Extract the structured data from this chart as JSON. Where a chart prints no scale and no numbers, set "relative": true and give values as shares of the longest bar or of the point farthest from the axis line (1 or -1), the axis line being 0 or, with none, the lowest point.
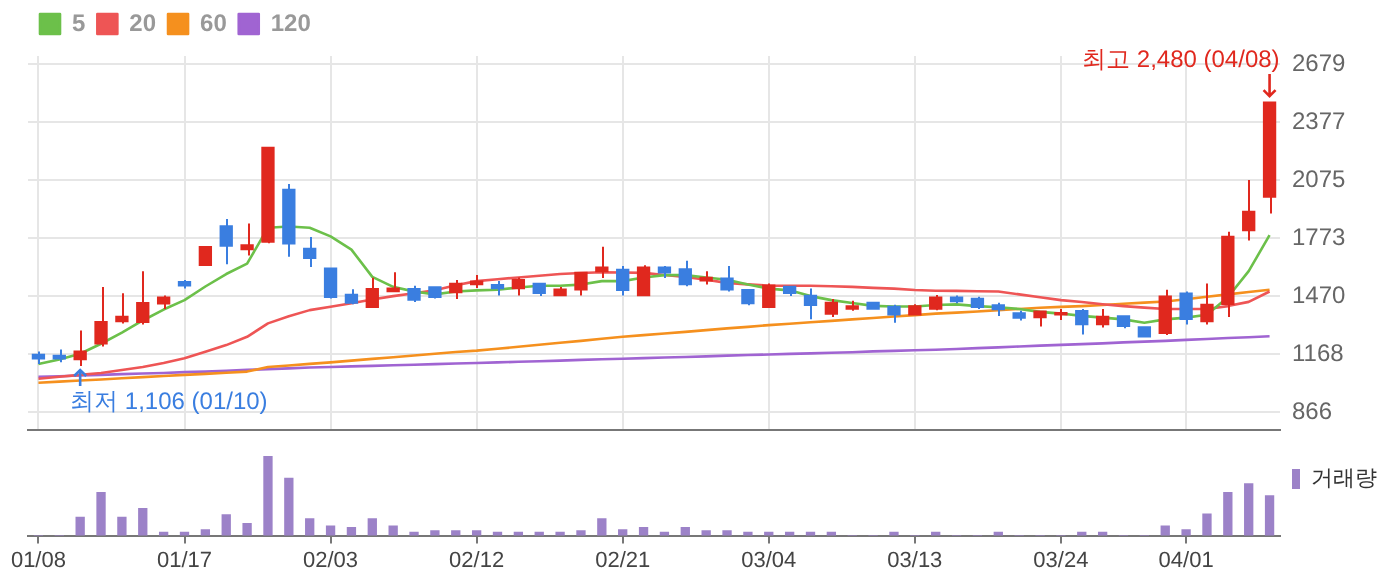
{
  "chart_data": [
    {
      "type": "candlestick",
      "categories": [
        null,
        null,
        null,
        null,
        null,
        null,
        null,
        null,
        null,
        null,
        null,
        null,
        null,
        null,
        null,
        null,
        null,
        null,
        null,
        null,
        null,
        null,
        null,
        null,
        null,
        null,
        null,
        null,
        null,
        null,
        null,
        null,
        null,
        null,
        null,
        null,
        null,
        null,
        null,
        null,
        null,
        null,
        null,
        null,
        null,
        null,
        null,
        null,
        null,
        null,
        null,
        null,
        null,
        null,
        null,
        null,
        null,
        null,
        null,
        null
      ],
      "ohlc": [
        [
          1167,
          1182,
          1116,
          1143
        ],
        [
          1161,
          1192,
          1125,
          1143
        ],
        [
          1140,
          1291,
          1106,
          1183
        ],
        [
          1222,
          1518,
          1207,
          1337
        ],
        [
          1337,
          1485,
          1328,
          1364
        ],
        [
          1334,
          1600,
          1322,
          1436
        ],
        [
          1430,
          1473,
          1403,
          1464
        ],
        [
          1545,
          1554,
          1509,
          1524
        ],
        [
          1630,
          1727,
          1630,
          1727
        ],
        [
          1835,
          1872,
          1636,
          1730
        ],
        [
          1712,
          1848,
          1681,
          1736
        ],
        [
          1751,
          2244,
          1745,
          2244
        ],
        [
          2026,
          2053,
          1675,
          1742
        ],
        [
          1718,
          1778,
          1621,
          1666
        ],
        [
          1615,
          1615,
          1458,
          1464
        ],
        [
          1479,
          1506,
          1427,
          1433
        ],
        [
          1412,
          1566,
          1412,
          1509
        ],
        [
          1494,
          1594,
          1491,
          1512
        ],
        [
          1509,
          1524,
          1439,
          1449
        ],
        [
          1518,
          1518,
          1458,
          1464
        ],
        [
          1488,
          1554,
          1455,
          1536
        ],
        [
          1530,
          1580,
          1512,
          1548
        ],
        [
          1530,
          1548,
          1473,
          1509
        ],
        [
          1509,
          1567,
          1473,
          1555
        ],
        [
          1536,
          1536,
          1470,
          1485
        ],
        [
          1473,
          1518,
          1473,
          1506
        ],
        [
          1503,
          1594,
          1473,
          1594
        ],
        [
          1597,
          1727,
          1564,
          1621
        ],
        [
          1609,
          1627,
          1473,
          1500
        ],
        [
          1473,
          1630,
          1473,
          1621
        ],
        [
          1621,
          1627,
          1564,
          1591
        ],
        [
          1612,
          1654,
          1521,
          1530
        ],
        [
          1549,
          1600,
          1530,
          1567
        ],
        [
          1564,
          1627,
          1494,
          1503
        ],
        [
          1503,
          1503,
          1422,
          1431
        ],
        [
          1412,
          1536,
          1412,
          1527
        ],
        [
          1521,
          1521,
          1470,
          1485
        ],
        [
          1473,
          1509,
          1349,
          1422
        ],
        [
          1376,
          1455,
          1361,
          1437
        ],
        [
          1403,
          1446,
          1394,
          1419
        ],
        [
          1437,
          1437,
          1403,
          1403
        ],
        [
          1416,
          1425,
          1331,
          1373
        ],
        [
          1373,
          1428,
          1373,
          1419
        ],
        [
          1403,
          1476,
          1397,
          1464
        ],
        [
          1464,
          1473,
          1433,
          1442
        ],
        [
          1458,
          1467,
          1403,
          1412
        ],
        [
          1424,
          1436,
          1367,
          1400
        ],
        [
          1382,
          1394,
          1343,
          1355
        ],
        [
          1358,
          1391,
          1312,
          1391
        ],
        [
          1373,
          1403,
          1346,
          1382
        ],
        [
          1394,
          1403,
          1270,
          1322
        ],
        [
          1322,
          1403,
          1306,
          1364
        ],
        [
          1367,
          1367,
          1303,
          1312
        ],
        [
          1309,
          1309,
          1258,
          1258
        ],
        [
          1276,
          1503,
          1267,
          1470
        ],
        [
          1485,
          1494,
          1322,
          1349
        ],
        [
          1337,
          1536,
          1322,
          1427
        ],
        [
          1427,
          1805,
          1361,
          1781
        ],
        [
          1811,
          2074,
          1760,
          1911
        ],
        [
          1985,
          2480,
          1900,
          2480
        ]
      ],
      "colors": [
        "#3a7ee0",
        "#3a7ee0",
        "#e0281e",
        "#e0281e",
        "#e0281e",
        "#e0281e",
        "#e0281e",
        "#3a7ee0",
        "#e0281e",
        "#3a7ee0",
        "#e0281e",
        "#e0281e",
        "#3a7ee0",
        "#3a7ee0",
        "#3a7ee0",
        "#3a7ee0",
        "#e0281e",
        "#e0281e",
        "#3a7ee0",
        "#3a7ee0",
        "#e0281e",
        "#e0281e",
        "#3a7ee0",
        "#e0281e",
        "#3a7ee0",
        "#e0281e",
        "#e0281e",
        "#e0281e",
        "#3a7ee0",
        "#e0281e",
        "#3a7ee0",
        "#3a7ee0",
        "#e0281e",
        "#3a7ee0",
        "#3a7ee0",
        "#e0281e",
        "#3a7ee0",
        "#3a7ee0",
        "#e0281e",
        "#e0281e",
        "#3a7ee0",
        "#3a7ee0",
        "#e0281e",
        "#e0281e",
        "#3a7ee0",
        "#3a7ee0",
        "#3a7ee0",
        "#3a7ee0",
        "#e0281e",
        "#e0281e",
        "#3a7ee0",
        "#e0281e",
        "#3a7ee0",
        "#3a7ee0",
        "#e0281e",
        "#3a7ee0",
        "#e0281e",
        "#e0281e",
        "#e0281e",
        "#e0281e"
      ],
      "series": [
        {
          "name": "5",
          "type": "line",
          "color": "#6cc04a",
          "values": [
            1116,
            1140,
            1170,
            1222,
            1280,
            1343,
            1400,
            1449,
            1520,
            1585,
            1639,
            1826,
            1832,
            1826,
            1781,
            1712,
            1570,
            1518,
            1494,
            1479,
            1494,
            1500,
            1503,
            1515,
            1524,
            1524,
            1530,
            1548,
            1548,
            1567,
            1579,
            1579,
            1567,
            1555,
            1530,
            1509,
            1500,
            1470,
            1449,
            1434,
            1419,
            1416,
            1416,
            1424,
            1427,
            1418,
            1412,
            1403,
            1388,
            1379,
            1367,
            1358,
            1349,
            1331,
            1349,
            1358,
            1373,
            1464,
            1600,
            1787
          ]
        },
        {
          "name": "20",
          "type": "line",
          "color": "#ee5555",
          "values": [
            1040,
            1050,
            1060,
            1070,
            1085,
            1101,
            1122,
            1146,
            1180,
            1215,
            1258,
            1328,
            1365,
            1397,
            1415,
            1433,
            1452,
            1470,
            1485,
            1500,
            1527,
            1548,
            1558,
            1567,
            1576,
            1585,
            1590,
            1594,
            1593,
            1591,
            1580,
            1570,
            1555,
            1539,
            1531,
            1524,
            1524,
            1524,
            1521,
            1518,
            1513,
            1509,
            1502,
            1498,
            1497,
            1495,
            1494,
            1479,
            1464,
            1449,
            1439,
            1428,
            1418,
            1410,
            1403,
            1403,
            1403,
            1418,
            1440,
            1494
          ]
        },
        {
          "name": "60",
          "type": "line",
          "color": "#f5901e",
          "values": [
            1019,
            1025,
            1031,
            1036,
            1042,
            1048,
            1054,
            1060,
            1065,
            1071,
            1077,
            1101,
            1109,
            1117,
            1125,
            1134,
            1143,
            1152,
            1161,
            1170,
            1179,
            1186,
            1196,
            1206,
            1217,
            1227,
            1237,
            1248,
            1258,
            1267,
            1275,
            1284,
            1293,
            1302,
            1310,
            1319,
            1326,
            1334,
            1341,
            1349,
            1356,
            1364,
            1371,
            1379,
            1384,
            1390,
            1397,
            1403,
            1409,
            1414,
            1418,
            1424,
            1430,
            1436,
            1442,
            1454,
            1467,
            1479,
            1491,
            1503
          ]
        },
        {
          "name": "120",
          "type": "line",
          "color": "#a064d2",
          "values": [
            1050,
            1053,
            1057,
            1060,
            1064,
            1067,
            1070,
            1074,
            1077,
            1081,
            1086,
            1090,
            1094,
            1098,
            1101,
            1104,
            1107,
            1110,
            1113,
            1116,
            1119,
            1122,
            1125,
            1128,
            1131,
            1134,
            1138,
            1141,
            1144,
            1147,
            1150,
            1153,
            1156,
            1160,
            1163,
            1166,
            1169,
            1172,
            1175,
            1178,
            1182,
            1185,
            1188,
            1191,
            1195,
            1199,
            1203,
            1208,
            1212,
            1216,
            1220,
            1224,
            1229,
            1233,
            1237,
            1242,
            1247,
            1252,
            1256,
            1261
          ]
        }
      ],
      "ylim": [
        775,
        2720
      ],
      "yticks": [
        866,
        1168,
        1470,
        1773,
        2075,
        2377,
        2679
      ],
      "grid": true,
      "legend": "top left",
      "tick_labels": "y",
      "annotations": [
        {
          "text": "최저 1,106 (01/10)",
          "y": 1106
        },
        "최고 2,480 (04/08)"
      ]
    },
    {
      "type": "bar",
      "relative": true,
      "categories": [
        "01/08",
        null,
        null,
        null,
        null,
        null,
        null,
        "01/17",
        null,
        null,
        null,
        null,
        null,
        null,
        "02/03",
        null,
        null,
        null,
        null,
        null,
        null,
        "02/12",
        null,
        null,
        null,
        null,
        null,
        null,
        "02/21",
        null,
        null,
        null,
        null,
        null,
        null,
        "03/04",
        null,
        null,
        null,
        null,
        null,
        null,
        "03/13",
        null,
        null,
        null,
        null,
        null,
        null,
        "03/24",
        null,
        null,
        null,
        null,
        null,
        "04/01",
        null,
        null,
        null,
        null
      ],
      "series": [
        {
          "name": "거래량",
          "color": "#9c82c8",
          "values": [
            0,
            0,
            0.23,
            0.54,
            0.23,
            0.34,
            0.04,
            0.04,
            0.07,
            0.26,
            0.15,
            1,
            0.72,
            0.21,
            0.12,
            0.1,
            0.21,
            0.12,
            0.04,
            0.06,
            0.06,
            0.06,
            0.04,
            0.04,
            0.04,
            0.04,
            0.06,
            0.21,
            0.07,
            0.1,
            0.04,
            0.1,
            0.06,
            0.06,
            0.04,
            0.04,
            0.04,
            0.04,
            0.04,
            0,
            0,
            0.04,
            0,
            0.04,
            0,
            0,
            0.04,
            0,
            0,
            0,
            0.04,
            0.04,
            0,
            0,
            0.12,
            0.07,
            0.27,
            0.54,
            0.65,
            0.5
          ]
        }
      ],
      "legend": "top right",
      "tick_labels": "x"
    }
  ]
}
